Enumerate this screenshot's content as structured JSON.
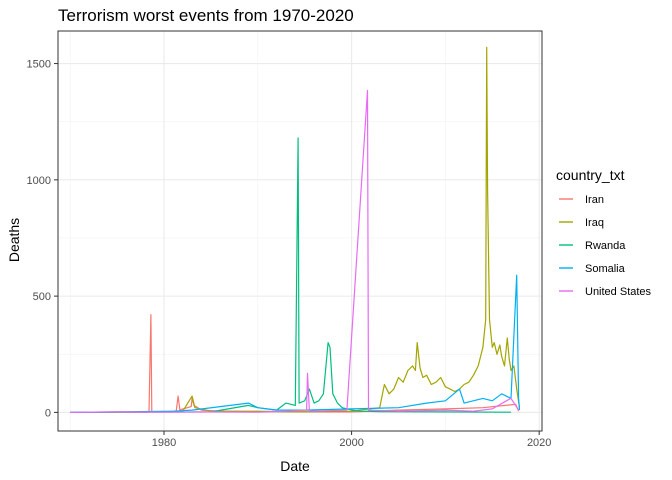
{
  "chart_data": {
    "type": "line",
    "title": "Terrorism worst events from 1970-2020",
    "xlabel": "Date",
    "ylabel": "Deaths",
    "xlim": [
      1968.7,
      2020.3
    ],
    "ylim": [
      -80,
      1640
    ],
    "x_ticks": [
      1980,
      2000,
      2020
    ],
    "y_ticks": [
      0,
      500,
      1000,
      1500
    ],
    "grid": true,
    "legend": {
      "title": "country_txt",
      "position": "right"
    },
    "series": [
      {
        "name": "Iran",
        "color": "#F8766D",
        "points": [
          [
            1970.2,
            0
          ],
          [
            1976.0,
            1
          ],
          [
            1978.2,
            0
          ],
          [
            1978.4,
            1
          ],
          [
            1978.6,
            420
          ],
          [
            1978.7,
            2
          ],
          [
            1980.0,
            3
          ],
          [
            1981.3,
            5
          ],
          [
            1981.5,
            70
          ],
          [
            1981.7,
            10
          ],
          [
            1982.0,
            15
          ],
          [
            1982.5,
            20
          ],
          [
            1982.9,
            25
          ],
          [
            1983.0,
            60
          ],
          [
            1983.2,
            30
          ],
          [
            1984.0,
            10
          ],
          [
            1986.0,
            5
          ],
          [
            1990.0,
            3
          ],
          [
            1995.0,
            2
          ],
          [
            2000.0,
            2
          ],
          [
            2005.0,
            10
          ],
          [
            2010.0,
            15
          ],
          [
            2014.0,
            20
          ],
          [
            2017.5,
            35
          ],
          [
            2017.8,
            5
          ]
        ]
      },
      {
        "name": "Iraq",
        "color": "#A3A500",
        "points": [
          [
            1970.5,
            0
          ],
          [
            1978.0,
            2
          ],
          [
            1982.0,
            5
          ],
          [
            1983.0,
            70
          ],
          [
            1983.3,
            20
          ],
          [
            1985.0,
            5
          ],
          [
            1990.0,
            5
          ],
          [
            1994.0,
            2
          ],
          [
            1996.0,
            3
          ],
          [
            2000.0,
            5
          ],
          [
            2003.0,
            20
          ],
          [
            2003.5,
            120
          ],
          [
            2004.0,
            80
          ],
          [
            2004.5,
            100
          ],
          [
            2005.0,
            150
          ],
          [
            2005.5,
            130
          ],
          [
            2006.0,
            180
          ],
          [
            2006.5,
            200
          ],
          [
            2006.8,
            180
          ],
          [
            2007.0,
            300
          ],
          [
            2007.3,
            190
          ],
          [
            2007.6,
            150
          ],
          [
            2008.0,
            160
          ],
          [
            2008.5,
            120
          ],
          [
            2009.0,
            130
          ],
          [
            2009.5,
            150
          ],
          [
            2010.0,
            110
          ],
          [
            2010.5,
            100
          ],
          [
            2011.0,
            90
          ],
          [
            2011.5,
            100
          ],
          [
            2012.0,
            120
          ],
          [
            2012.5,
            130
          ],
          [
            2013.0,
            160
          ],
          [
            2013.5,
            200
          ],
          [
            2014.0,
            280
          ],
          [
            2014.3,
            400
          ],
          [
            2014.4,
            1570
          ],
          [
            2014.5,
            950
          ],
          [
            2014.7,
            400
          ],
          [
            2015.0,
            280
          ],
          [
            2015.2,
            300
          ],
          [
            2015.5,
            250
          ],
          [
            2015.8,
            290
          ],
          [
            2016.0,
            240
          ],
          [
            2016.3,
            200
          ],
          [
            2016.6,
            320
          ],
          [
            2016.8,
            230
          ],
          [
            2017.0,
            180
          ],
          [
            2017.3,
            200
          ],
          [
            2017.6,
            100
          ],
          [
            2017.9,
            20
          ]
        ]
      },
      {
        "name": "Rwanda",
        "color": "#00BF7D",
        "points": [
          [
            1970.0,
            0
          ],
          [
            1985.0,
            2
          ],
          [
            1989.0,
            30
          ],
          [
            1990.0,
            20
          ],
          [
            1992.0,
            10
          ],
          [
            1993.0,
            40
          ],
          [
            1994.0,
            30
          ],
          [
            1994.3,
            1180
          ],
          [
            1994.4,
            40
          ],
          [
            1995.0,
            50
          ],
          [
            1995.5,
            100
          ],
          [
            1996.0,
            40
          ],
          [
            1996.5,
            50
          ],
          [
            1997.0,
            80
          ],
          [
            1997.5,
            300
          ],
          [
            1997.7,
            280
          ],
          [
            1998.0,
            80
          ],
          [
            1998.5,
            40
          ],
          [
            1999.0,
            20
          ],
          [
            2000.0,
            10
          ],
          [
            2001.0,
            5
          ],
          [
            2003.0,
            3
          ],
          [
            2010.0,
            2
          ],
          [
            2017.0,
            1
          ]
        ]
      },
      {
        "name": "Somalia",
        "color": "#00B0F6",
        "points": [
          [
            1970.0,
            0
          ],
          [
            1981.0,
            5
          ],
          [
            1983.0,
            10
          ],
          [
            1989.0,
            40
          ],
          [
            1990.0,
            20
          ],
          [
            1992.0,
            10
          ],
          [
            1995.0,
            10
          ],
          [
            2000.0,
            15
          ],
          [
            2005.0,
            20
          ],
          [
            2008.0,
            40
          ],
          [
            2010.0,
            50
          ],
          [
            2011.5,
            100
          ],
          [
            2012.0,
            40
          ],
          [
            2014.0,
            60
          ],
          [
            2015.0,
            50
          ],
          [
            2016.0,
            80
          ],
          [
            2017.0,
            60
          ],
          [
            2017.6,
            590
          ],
          [
            2017.8,
            60
          ],
          [
            2017.9,
            10
          ]
        ]
      },
      {
        "name": "United States",
        "color": "#E76BF3",
        "points": [
          [
            1970.0,
            0
          ],
          [
            1975.0,
            2
          ],
          [
            1980.0,
            1
          ],
          [
            1985.0,
            2
          ],
          [
            1990.0,
            1
          ],
          [
            1993.0,
            5
          ],
          [
            1995.2,
            10
          ],
          [
            1995.3,
            168
          ],
          [
            1995.5,
            5
          ],
          [
            1999.5,
            10
          ],
          [
            2001.7,
            1385
          ],
          [
            2001.8,
            10
          ],
          [
            2005.0,
            5
          ],
          [
            2010.0,
            10
          ],
          [
            2013.0,
            5
          ],
          [
            2015.0,
            15
          ],
          [
            2016.5,
            50
          ],
          [
            2017.0,
            60
          ],
          [
            2017.8,
            10
          ]
        ]
      }
    ]
  }
}
